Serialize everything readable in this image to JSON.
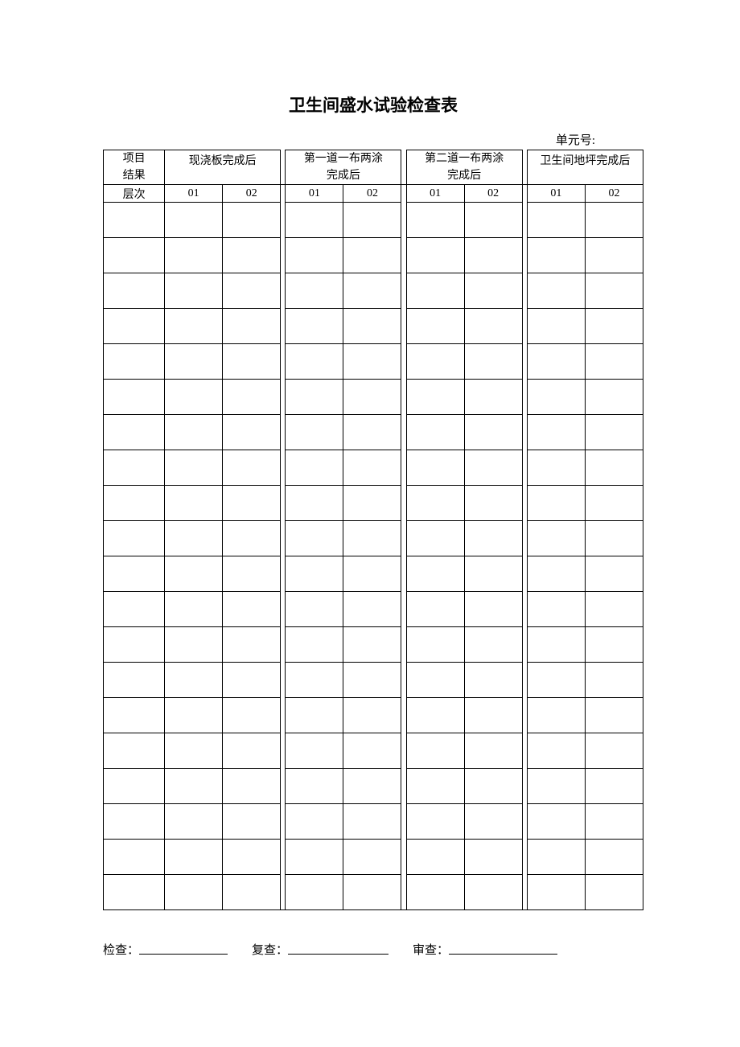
{
  "title": "卫生间盛水试验检查表",
  "unit_label": "单元号:",
  "header": {
    "col0_line1": "项目",
    "col0_line2": "结果",
    "row_label": "层次",
    "groups": [
      {
        "label": "现浇板完成后",
        "subs": [
          "01",
          "02"
        ]
      },
      {
        "label_l1": "第一道一布两涂",
        "label_l2": "完成后",
        "subs": [
          "01",
          "02"
        ]
      },
      {
        "label_l1": "第二道一布两涂",
        "label_l2": "完成后",
        "subs": [
          "01",
          "02"
        ]
      },
      {
        "label": "卫生间地坪完成后",
        "subs": [
          "01",
          "02"
        ]
      }
    ]
  },
  "data_row_count": 20,
  "footer": {
    "check": "检查：",
    "recheck": "复查：",
    "audit": "审查："
  },
  "style": {
    "background": "#ffffff",
    "border_color": "#000000",
    "title_fontsize": 21,
    "cell_fontsize": 14,
    "footer_fontsize": 15
  }
}
